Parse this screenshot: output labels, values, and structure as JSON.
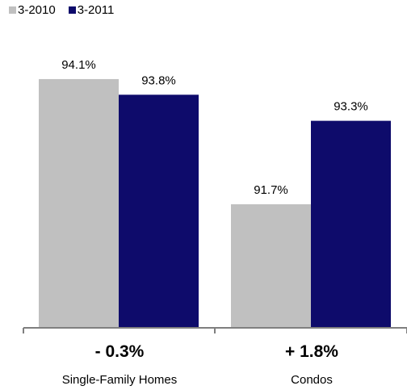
{
  "chart_data": {
    "type": "bar",
    "categories": [
      "Single-Family Homes",
      "Condos"
    ],
    "series": [
      {
        "name": "3-2010",
        "values": [
          94.1,
          91.7
        ],
        "labels": [
          "94.1%",
          "91.7%"
        ],
        "color": "#c0c0c0"
      },
      {
        "name": "3-2011",
        "values": [
          93.8,
          93.3
        ],
        "labels": [
          "93.8%",
          "93.3%"
        ],
        "color": "#0e0b6b"
      }
    ],
    "changes": [
      "- 0.3%",
      "+ 1.8%"
    ],
    "legend": "top-left",
    "grid": false
  }
}
